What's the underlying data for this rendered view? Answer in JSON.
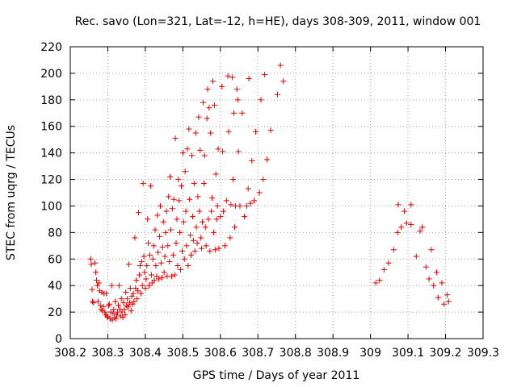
{
  "chart_data": {
    "type": "scatter",
    "title": "Rec. savo (Lon=321, Lat=-12, h=HE), days 308-309, 2011, window 001",
    "xlabel": "GPS time / Days of year 2011",
    "ylabel": "STEC from uqrg / TECUs",
    "xlim": [
      308.2,
      309.3
    ],
    "ylim": [
      0,
      220
    ],
    "x_ticks": [
      308.2,
      308.3,
      308.4,
      308.5,
      308.6,
      308.7,
      308.8,
      308.9,
      309,
      309.1,
      309.2,
      309.3
    ],
    "x_tick_labels": [
      "308.2",
      "308.3",
      "308.4",
      "308.5",
      "308.6",
      "308.7",
      "308.8",
      "308.9",
      "309",
      "309.1",
      "309.2",
      "309.3"
    ],
    "y_ticks": [
      0,
      20,
      40,
      60,
      80,
      100,
      120,
      140,
      160,
      180,
      200,
      220
    ],
    "y_tick_labels": [
      "0",
      "20",
      "40",
      "60",
      "80",
      "100",
      "120",
      "140",
      "160",
      "180",
      "200",
      "220"
    ],
    "grid": true,
    "marker": "+",
    "color": "#e00000",
    "points": [
      [
        308.254,
        60
      ],
      [
        308.256,
        56
      ],
      [
        308.258,
        37
      ],
      [
        308.259,
        28
      ],
      [
        308.262,
        27
      ],
      [
        308.266,
        57
      ],
      [
        308.268,
        50
      ],
      [
        308.27,
        44
      ],
      [
        308.272,
        40
      ],
      [
        308.274,
        28
      ],
      [
        308.276,
        42
      ],
      [
        308.278,
        36
      ],
      [
        308.28,
        25
      ],
      [
        308.282,
        22
      ],
      [
        308.284,
        35
      ],
      [
        308.286,
        21
      ],
      [
        308.288,
        24
      ],
      [
        308.29,
        34
      ],
      [
        308.292,
        20
      ],
      [
        308.294,
        18
      ],
      [
        308.296,
        34
      ],
      [
        308.298,
        17
      ],
      [
        308.3,
        16
      ],
      [
        308.302,
        25
      ],
      [
        308.304,
        26
      ],
      [
        308.306,
        15
      ],
      [
        308.308,
        20
      ],
      [
        308.31,
        40
      ],
      [
        308.312,
        14
      ],
      [
        308.314,
        19
      ],
      [
        308.316,
        22
      ],
      [
        308.318,
        16
      ],
      [
        308.32,
        28
      ],
      [
        308.322,
        15
      ],
      [
        308.324,
        18
      ],
      [
        308.326,
        20
      ],
      [
        308.328,
        25
      ],
      [
        308.33,
        40
      ],
      [
        308.332,
        22
      ],
      [
        308.334,
        17
      ],
      [
        308.336,
        30
      ],
      [
        308.338,
        20
      ],
      [
        308.34,
        16
      ],
      [
        308.342,
        27
      ],
      [
        308.344,
        22
      ],
      [
        308.346,
        18
      ],
      [
        308.348,
        35
      ],
      [
        308.35,
        25
      ],
      [
        308.352,
        30
      ],
      [
        308.354,
        24
      ],
      [
        308.356,
        56
      ],
      [
        308.358,
        27
      ],
      [
        308.36,
        38
      ],
      [
        308.362,
        21
      ],
      [
        308.364,
        32
      ],
      [
        308.366,
        26
      ],
      [
        308.368,
        34
      ],
      [
        308.37,
        28
      ],
      [
        308.372,
        76
      ],
      [
        308.374,
        38
      ],
      [
        308.376,
        44
      ],
      [
        308.378,
        30
      ],
      [
        308.38,
        36
      ],
      [
        308.382,
        95
      ],
      [
        308.384,
        48
      ],
      [
        308.386,
        55
      ],
      [
        308.388,
        34
      ],
      [
        308.39,
        58
      ],
      [
        308.392,
        40
      ],
      [
        308.394,
        117
      ],
      [
        308.396,
        62
      ],
      [
        308.398,
        50
      ],
      [
        308.4,
        38
      ],
      [
        308.402,
        45
      ],
      [
        308.404,
        55
      ],
      [
        308.406,
        90
      ],
      [
        308.408,
        72
      ],
      [
        308.41,
        40
      ],
      [
        308.412,
        63
      ],
      [
        308.414,
        115
      ],
      [
        308.416,
        48
      ],
      [
        308.418,
        42
      ],
      [
        308.42,
        60
      ],
      [
        308.422,
        70
      ],
      [
        308.424,
        44
      ],
      [
        308.426,
        82
      ],
      [
        308.428,
        55
      ],
      [
        308.43,
        47
      ],
      [
        308.432,
        93
      ],
      [
        308.434,
        65
      ],
      [
        308.436,
        45
      ],
      [
        308.438,
        77
      ],
      [
        308.44,
        100
      ],
      [
        308.442,
        57
      ],
      [
        308.444,
        46
      ],
      [
        308.446,
        69
      ],
      [
        308.448,
        88
      ],
      [
        308.45,
        50
      ],
      [
        308.452,
        62
      ],
      [
        308.454,
        80
      ],
      [
        308.456,
        96
      ],
      [
        308.458,
        47
      ],
      [
        308.46,
        70
      ],
      [
        308.462,
        107
      ],
      [
        308.464,
        58
      ],
      [
        308.466,
        122
      ],
      [
        308.468,
        82
      ],
      [
        308.47,
        47
      ],
      [
        308.472,
        98
      ],
      [
        308.474,
        63
      ],
      [
        308.476,
        105
      ],
      [
        308.478,
        48
      ],
      [
        308.48,
        151
      ],
      [
        308.482,
        72
      ],
      [
        308.484,
        90
      ],
      [
        308.486,
        55
      ],
      [
        308.488,
        120
      ],
      [
        308.49,
        104
      ],
      [
        308.492,
        80
      ],
      [
        308.494,
        52
      ],
      [
        308.496,
        115
      ],
      [
        308.498,
        66
      ],
      [
        308.5,
        140
      ],
      [
        308.502,
        88
      ],
      [
        308.504,
        60
      ],
      [
        308.506,
        126
      ],
      [
        308.508,
        96
      ],
      [
        308.51,
        70
      ],
      [
        308.512,
        143
      ],
      [
        308.514,
        55
      ],
      [
        308.516,
        158
      ],
      [
        308.518,
        105
      ],
      [
        308.52,
        78
      ],
      [
        308.522,
        63
      ],
      [
        308.524,
        138
      ],
      [
        308.526,
        92
      ],
      [
        308.528,
        74
      ],
      [
        308.53,
        117
      ],
      [
        308.532,
        66
      ],
      [
        308.534,
        155
      ],
      [
        308.536,
        84
      ],
      [
        308.538,
        72
      ],
      [
        308.54,
        107
      ],
      [
        308.542,
        167
      ],
      [
        308.544,
        96
      ],
      [
        308.546,
        142
      ],
      [
        308.548,
        76
      ],
      [
        308.55,
        68
      ],
      [
        308.552,
        88
      ],
      [
        308.554,
        178
      ],
      [
        308.556,
        117
      ],
      [
        308.558,
        138
      ],
      [
        308.56,
        84
      ],
      [
        308.562,
        70
      ],
      [
        308.564,
        166
      ],
      [
        308.566,
        188
      ],
      [
        308.568,
        90
      ],
      [
        308.57,
        174
      ],
      [
        308.572,
        66
      ],
      [
        308.574,
        155
      ],
      [
        308.576,
        96
      ],
      [
        308.578,
        106
      ],
      [
        308.58,
        194
      ],
      [
        308.582,
        80
      ],
      [
        308.584,
        176
      ],
      [
        308.586,
        67
      ],
      [
        308.588,
        124
      ],
      [
        308.59,
        90
      ],
      [
        308.592,
        100
      ],
      [
        308.594,
        143
      ],
      [
        308.596,
        68
      ],
      [
        308.6,
        92
      ],
      [
        308.604,
        190
      ],
      [
        308.606,
        141
      ],
      [
        308.608,
        96
      ],
      [
        308.612,
        70
      ],
      [
        308.616,
        104
      ],
      [
        308.62,
        198
      ],
      [
        308.622,
        156
      ],
      [
        308.626,
        76
      ],
      [
        308.628,
        101
      ],
      [
        308.632,
        197
      ],
      [
        308.634,
        120
      ],
      [
        308.636,
        170
      ],
      [
        308.638,
        84
      ],
      [
        308.64,
        100
      ],
      [
        308.644,
        188
      ],
      [
        308.646,
        180
      ],
      [
        308.648,
        141
      ],
      [
        308.652,
        100
      ],
      [
        308.658,
        170
      ],
      [
        308.664,
        92
      ],
      [
        308.67,
        100
      ],
      [
        308.674,
        113
      ],
      [
        308.676,
        196
      ],
      [
        308.68,
        102
      ],
      [
        308.684,
        134
      ],
      [
        308.69,
        104
      ],
      [
        308.694,
        156
      ],
      [
        308.704,
        110
      ],
      [
        308.708,
        180
      ],
      [
        308.714,
        120
      ],
      [
        308.718,
        199
      ],
      [
        308.724,
        135
      ],
      [
        308.734,
        157
      ],
      [
        308.752,
        184
      ],
      [
        308.76,
        206
      ],
      [
        308.768,
        194
      ],
      [
        309.014,
        42
      ],
      [
        309.024,
        44
      ],
      [
        309.036,
        52
      ],
      [
        309.048,
        57
      ],
      [
        309.062,
        67
      ],
      [
        309.072,
        80
      ],
      [
        309.074,
        101
      ],
      [
        309.082,
        84
      ],
      [
        309.09,
        96
      ],
      [
        309.096,
        87
      ],
      [
        309.108,
        101
      ],
      [
        309.108,
        86
      ],
      [
        309.122,
        62
      ],
      [
        309.132,
        81
      ],
      [
        309.138,
        84
      ],
      [
        309.148,
        54
      ],
      [
        309.156,
        45
      ],
      [
        309.162,
        67
      ],
      [
        309.168,
        40
      ],
      [
        309.176,
        50
      ],
      [
        309.18,
        31
      ],
      [
        309.19,
        42
      ],
      [
        309.196,
        26
      ],
      [
        309.204,
        33
      ],
      [
        309.208,
        28
      ]
    ]
  }
}
